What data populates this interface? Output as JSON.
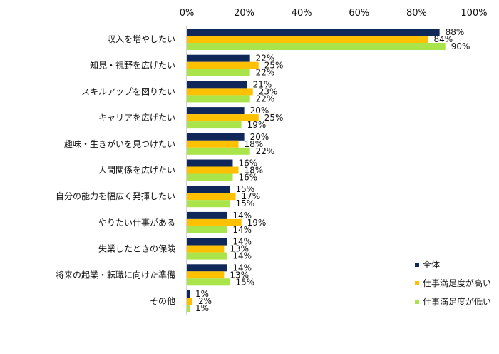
{
  "chart_data": {
    "type": "bar",
    "orientation": "horizontal",
    "categories": [
      "収入を増やしたい",
      "知見・視野を広げたい",
      "スキルアップを図りたい",
      "キャリアを広げたい",
      "趣味・生きがいを見つけたい",
      "人間関係を広げたい",
      "自分の能力を幅広く発揮したい",
      "やりたい仕事がある",
      "失業したときの保険",
      "将来の起業・転職に向けた準備",
      "その他"
    ],
    "series": [
      {
        "name": "全体",
        "color": "#10275a",
        "values": [
          88,
          22,
          21,
          20,
          20,
          16,
          15,
          14,
          14,
          14,
          1
        ]
      },
      {
        "name": "仕事満足度が高い",
        "color": "#ffc000",
        "values": [
          84,
          25,
          23,
          25,
          18,
          18,
          17,
          19,
          13,
          13,
          2
        ]
      },
      {
        "name": "仕事満足度が低い",
        "color": "#a9e44a",
        "values": [
          90,
          22,
          22,
          19,
          22,
          16,
          15,
          14,
          14,
          15,
          1
        ]
      }
    ],
    "x_ticks": [
      "0%",
      "20%",
      "40%",
      "60%",
      "80%",
      "100%"
    ],
    "xlim": [
      0,
      100
    ],
    "value_suffix": "%",
    "axis_position": "top",
    "grid": false,
    "legend_position": "bottom-right"
  }
}
